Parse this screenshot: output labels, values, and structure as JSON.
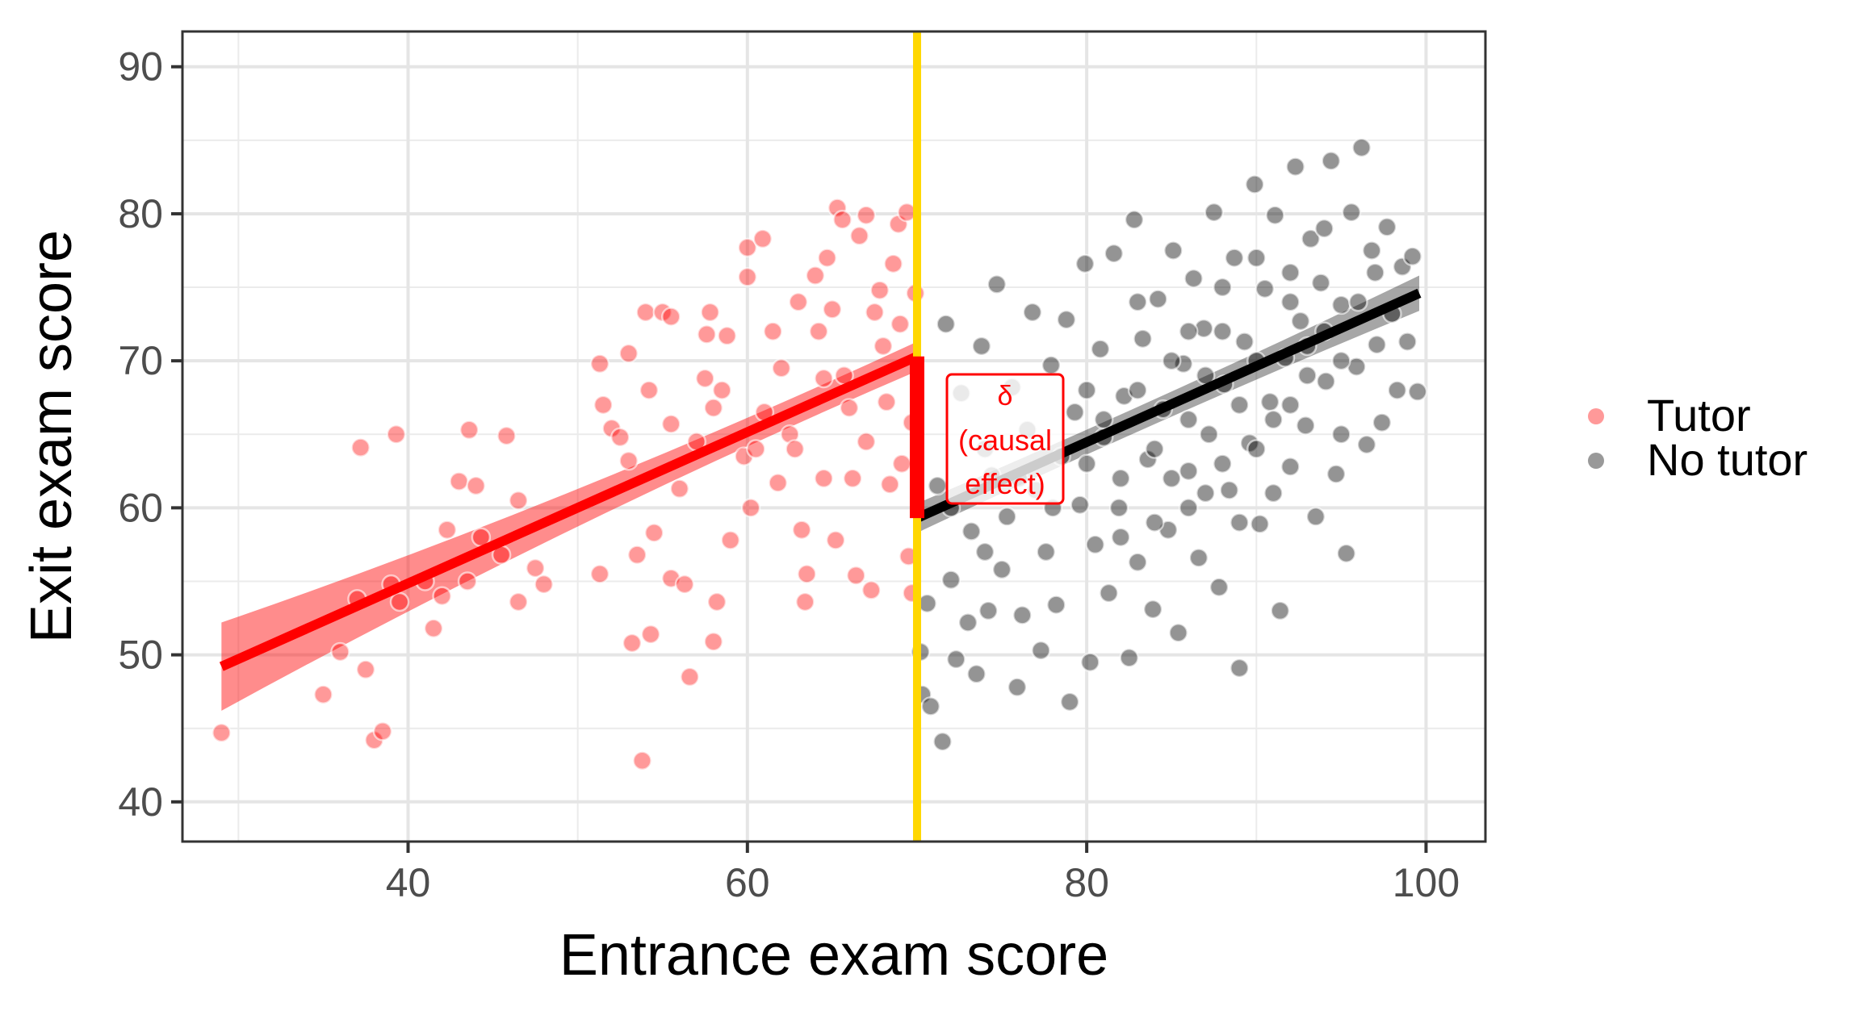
{
  "chart_data": {
    "type": "scatter",
    "xlabel": "Entrance exam score",
    "ylabel": "Exit exam score",
    "xlim": [
      26.7,
      103.5
    ],
    "ylim": [
      37.3,
      92.4
    ],
    "x_ticks": [
      40,
      60,
      80,
      100
    ],
    "y_ticks": [
      40,
      50,
      60,
      70,
      80,
      90
    ],
    "grid": true,
    "legend_position": "right",
    "cutoff": 70,
    "cutoff_color": "#FFD700",
    "annotation": {
      "lines": [
        "δ",
        "(causal",
        "effect)"
      ],
      "color": "#FF0000"
    },
    "causal_effect_bar": {
      "x": 70,
      "y_from": 59.3,
      "y_to": 70.3
    },
    "series": [
      {
        "name": "Tutor",
        "color": "#FF0000",
        "fit": {
          "x": [
            29,
            70
          ],
          "y": [
            49.2,
            70.3
          ],
          "ci_halfwidth": [
            3.0,
            1.0
          ]
        },
        "points": [
          [
            29,
            44.7
          ],
          [
            35,
            47.3
          ],
          [
            36,
            50.2
          ],
          [
            37,
            53.8
          ],
          [
            37.2,
            64.1
          ],
          [
            37.5,
            49
          ],
          [
            38,
            44.2
          ],
          [
            38.5,
            44.8
          ],
          [
            39,
            54.8
          ],
          [
            39.3,
            65
          ],
          [
            39.5,
            53.6
          ],
          [
            41,
            55
          ],
          [
            41.5,
            51.8
          ],
          [
            42,
            54
          ],
          [
            42.3,
            58.5
          ],
          [
            43,
            61.8
          ],
          [
            43.6,
            65.3
          ],
          [
            43.5,
            55
          ],
          [
            44,
            61.5
          ],
          [
            44.3,
            58
          ],
          [
            45.5,
            56.8
          ],
          [
            45.8,
            64.9
          ],
          [
            46.5,
            60.5
          ],
          [
            46.5,
            53.6
          ],
          [
            47.5,
            55.9
          ],
          [
            48,
            54.8
          ],
          [
            51.3,
            69.8
          ],
          [
            51.5,
            67
          ],
          [
            51.3,
            55.5
          ],
          [
            52,
            65.4
          ],
          [
            52.5,
            64.8
          ],
          [
            53,
            70.5
          ],
          [
            53,
            63.2
          ],
          [
            53.2,
            50.8
          ],
          [
            53.5,
            56.8
          ],
          [
            53.8,
            42.8
          ],
          [
            54,
            73.3
          ],
          [
            54.2,
            68
          ],
          [
            54.3,
            51.4
          ],
          [
            54.5,
            58.3
          ],
          [
            55,
            73.3
          ],
          [
            55.5,
            73
          ],
          [
            55.5,
            65.7
          ],
          [
            55.5,
            55.2
          ],
          [
            56,
            61.3
          ],
          [
            56.3,
            54.8
          ],
          [
            56.6,
            48.5
          ],
          [
            57,
            64.5
          ],
          [
            57.5,
            68.8
          ],
          [
            57.6,
            71.8
          ],
          [
            57.8,
            73.3
          ],
          [
            58,
            66.8
          ],
          [
            58,
            50.9
          ],
          [
            58.2,
            53.6
          ],
          [
            58.5,
            68
          ],
          [
            58.8,
            71.7
          ],
          [
            59,
            57.8
          ],
          [
            59.8,
            63.5
          ],
          [
            60,
            77.7
          ],
          [
            60,
            75.7
          ],
          [
            60.2,
            60
          ],
          [
            60.5,
            64
          ],
          [
            60.9,
            78.3
          ],
          [
            61,
            66.5
          ],
          [
            61.5,
            72
          ],
          [
            61.8,
            61.7
          ],
          [
            62,
            69.5
          ],
          [
            62.5,
            65
          ],
          [
            62.8,
            64
          ],
          [
            63,
            74
          ],
          [
            63.2,
            58.5
          ],
          [
            63.4,
            53.6
          ],
          [
            63.5,
            55.5
          ],
          [
            64,
            75.8
          ],
          [
            64.2,
            72
          ],
          [
            64.5,
            62
          ],
          [
            64.5,
            68.8
          ],
          [
            64.7,
            77
          ],
          [
            65,
            73.5
          ],
          [
            65.2,
            57.8
          ],
          [
            65.3,
            80.4
          ],
          [
            65.6,
            79.6
          ],
          [
            65.7,
            69
          ],
          [
            66,
            66.8
          ],
          [
            66.2,
            62
          ],
          [
            66.4,
            55.4
          ],
          [
            66.6,
            78.5
          ],
          [
            67,
            79.9
          ],
          [
            67,
            64.5
          ],
          [
            67.3,
            54.4
          ],
          [
            67.5,
            73.3
          ],
          [
            67.8,
            74.8
          ],
          [
            68,
            71
          ],
          [
            68.2,
            67.2
          ],
          [
            68.4,
            61.6
          ],
          [
            68.6,
            76.6
          ],
          [
            68.9,
            79.3
          ],
          [
            69,
            72.5
          ],
          [
            69.1,
            63
          ],
          [
            69.4,
            80.1
          ],
          [
            69.5,
            56.7
          ],
          [
            69.7,
            54.2
          ],
          [
            69.9,
            74.6
          ],
          [
            69.7,
            65.8
          ]
        ]
      },
      {
        "name": "No tutor",
        "color": "#000000",
        "fit": {
          "x": [
            70,
            99.6
          ],
          "y": [
            59.3,
            74.6
          ],
          "ci_halfwidth": [
            1.0,
            1.2
          ]
        },
        "points": [
          [
            70.2,
            50.2
          ],
          [
            70.3,
            47.3
          ],
          [
            70.6,
            53.5
          ],
          [
            70.8,
            46.5
          ],
          [
            71.2,
            61.5
          ],
          [
            71.5,
            44.1
          ],
          [
            71.7,
            72.5
          ],
          [
            72,
            55.1
          ],
          [
            72.3,
            49.7
          ],
          [
            72.6,
            67.8
          ],
          [
            73,
            52.2
          ],
          [
            73.2,
            58.4
          ],
          [
            73.5,
            48.7
          ],
          [
            73.8,
            71
          ],
          [
            74,
            64
          ],
          [
            74.2,
            53
          ],
          [
            74.4,
            62.2
          ],
          [
            74.7,
            75.2
          ],
          [
            75,
            55.8
          ],
          [
            75.3,
            59.4
          ],
          [
            75.6,
            68.2
          ],
          [
            75.9,
            47.8
          ],
          [
            76.2,
            52.7
          ],
          [
            76.5,
            65.3
          ],
          [
            76.8,
            73.3
          ],
          [
            77,
            61.2
          ],
          [
            77.3,
            50.3
          ],
          [
            77.6,
            57
          ],
          [
            77.9,
            69.7
          ],
          [
            78.2,
            53.4
          ],
          [
            78.5,
            63.5
          ],
          [
            78.8,
            72.8
          ],
          [
            79,
            46.8
          ],
          [
            79.3,
            66.5
          ],
          [
            79.6,
            60.2
          ],
          [
            79.9,
            76.6
          ],
          [
            80.2,
            49.5
          ],
          [
            80.5,
            57.5
          ],
          [
            80.8,
            70.8
          ],
          [
            81,
            64.8
          ],
          [
            81.3,
            54.2
          ],
          [
            81.6,
            77.3
          ],
          [
            81.9,
            60
          ],
          [
            82.2,
            67.6
          ],
          [
            82.5,
            49.8
          ],
          [
            82.8,
            79.6
          ],
          [
            83,
            56.3
          ],
          [
            83.3,
            71.5
          ],
          [
            83.6,
            63.3
          ],
          [
            83.9,
            53.1
          ],
          [
            84.2,
            74.2
          ],
          [
            84.5,
            66.7
          ],
          [
            84.8,
            58.5
          ],
          [
            85.1,
            77.5
          ],
          [
            85.4,
            51.5
          ],
          [
            85.7,
            69.8
          ],
          [
            86,
            62.5
          ],
          [
            86.3,
            75.6
          ],
          [
            86.6,
            56.6
          ],
          [
            86.9,
            72.2
          ],
          [
            87.2,
            65
          ],
          [
            87.5,
            80.1
          ],
          [
            87.8,
            54.6
          ],
          [
            88.1,
            68.4
          ],
          [
            88.4,
            61.2
          ],
          [
            88.7,
            77
          ],
          [
            89,
            49.1
          ],
          [
            89.3,
            71.3
          ],
          [
            89.6,
            64.4
          ],
          [
            89.9,
            82
          ],
          [
            90.2,
            58.9
          ],
          [
            90.5,
            74.9
          ],
          [
            90.8,
            67.2
          ],
          [
            91.1,
            79.9
          ],
          [
            91.4,
            53
          ],
          [
            91.7,
            70.2
          ],
          [
            92,
            62.8
          ],
          [
            92.3,
            83.2
          ],
          [
            92.6,
            72.7
          ],
          [
            92.9,
            65.6
          ],
          [
            93.2,
            78.3
          ],
          [
            93.5,
            59.4
          ],
          [
            93.8,
            75.3
          ],
          [
            94.1,
            68.6
          ],
          [
            94.4,
            83.6
          ],
          [
            94.7,
            62.3
          ],
          [
            95,
            73.8
          ],
          [
            95.3,
            56.9
          ],
          [
            95.6,
            80.1
          ],
          [
            95.9,
            69.6
          ],
          [
            96.2,
            84.5
          ],
          [
            96.5,
            64.3
          ],
          [
            96.8,
            77.5
          ],
          [
            97.1,
            71.1
          ],
          [
            97.4,
            65.8
          ],
          [
            97.7,
            79.1
          ],
          [
            98,
            73.2
          ],
          [
            98.3,
            68
          ],
          [
            98.6,
            76.4
          ],
          [
            98.9,
            71.3
          ],
          [
            99.2,
            77.1
          ],
          [
            99.5,
            67.9
          ],
          [
            80,
            68
          ],
          [
            81,
            66
          ],
          [
            82,
            62
          ],
          [
            83,
            68
          ],
          [
            84,
            64
          ],
          [
            85,
            70
          ],
          [
            86,
            66
          ],
          [
            87,
            61
          ],
          [
            88,
            72
          ],
          [
            89,
            67
          ],
          [
            90,
            70
          ],
          [
            91,
            66
          ],
          [
            92,
            74
          ],
          [
            93,
            69
          ],
          [
            94,
            72
          ],
          [
            95,
            65
          ],
          [
            84,
            59
          ],
          [
            86,
            60
          ],
          [
            88,
            63
          ],
          [
            90,
            64
          ],
          [
            92,
            67
          ],
          [
            76,
            62
          ],
          [
            78,
            60
          ],
          [
            80,
            63
          ],
          [
            82,
            58
          ],
          [
            74,
            57
          ],
          [
            72,
            60
          ],
          [
            86,
            72
          ],
          [
            88,
            75
          ],
          [
            90,
            77
          ],
          [
            92,
            76
          ],
          [
            94,
            79
          ],
          [
            96,
            74
          ],
          [
            97,
            76
          ],
          [
            83,
            74
          ],
          [
            85,
            62
          ],
          [
            87,
            69
          ],
          [
            89,
            59
          ],
          [
            91,
            61
          ],
          [
            93,
            71
          ],
          [
            95,
            70
          ]
        ]
      }
    ]
  }
}
